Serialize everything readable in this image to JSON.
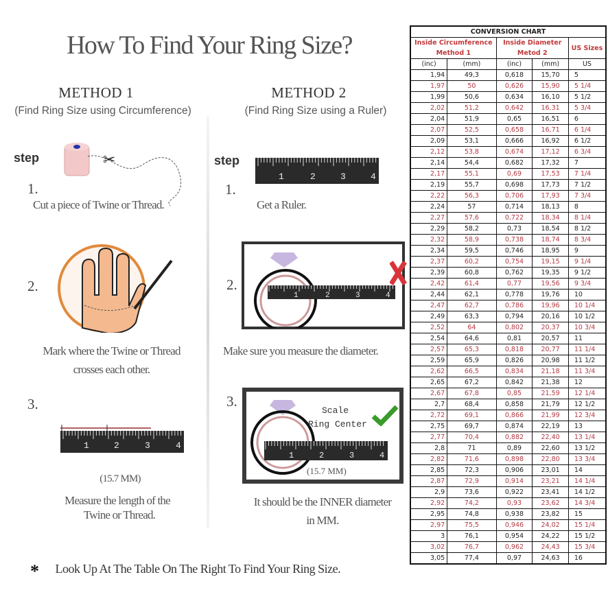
{
  "title": "How To Find Your Ring Size?",
  "method1": {
    "heading": "METHOD 1",
    "subtitle": "(Find Ring Size using Circumference)",
    "step_label": "step",
    "steps": [
      {
        "number": "1.",
        "caption": [
          "Cut a piece of  Twine or Thread."
        ]
      },
      {
        "number": "2.",
        "caption": [
          "Mark where the Twine or Thread",
          "crosses each other."
        ]
      },
      {
        "number": "3.",
        "measurement": "(15.7 MM)",
        "caption": [
          "Measure the length of the",
          "Twine or Thread."
        ]
      }
    ]
  },
  "method2": {
    "heading": "METHOD 2",
    "subtitle": "(Find Ring Size using a Ruler)",
    "step_label": "step",
    "steps": [
      {
        "number": "1.",
        "caption": [
          "Get a Ruler."
        ]
      },
      {
        "number": "2.",
        "caption": [
          "Make sure you measure the diameter."
        ]
      },
      {
        "number": "3.",
        "scale_label": [
          "Scale",
          "Ring Center"
        ],
        "measurement": "(15.7 MM)",
        "caption": [
          "It should be the INNER diameter",
          "in MM."
        ]
      }
    ]
  },
  "ruler_numbers": [
    "1",
    "2",
    "3",
    "4"
  ],
  "footnote": {
    "symbol": "*",
    "text": "Look Up At The Table On The Right To Find Your Ring Size."
  },
  "colors": {
    "highlight_red": "#b23a44",
    "header_red": "#c0393b",
    "hand_circle": "#e08a3c",
    "check_green": "#3a9a2a",
    "cross_red": "#d9343a"
  },
  "table": {
    "title": "CONVERSION CHART",
    "group_headers": [
      "Inside Circumference",
      "Method 1",
      "Inside Diameter",
      "Metod 2",
      "US Sizes"
    ],
    "unit_headers": [
      "(inc)",
      "(mm)",
      "(inc)",
      "(mm)",
      "US"
    ],
    "rows": [
      [
        "1,94",
        "49,3",
        "0,618",
        "15,70",
        "5"
      ],
      [
        "1,97",
        "50",
        "0,626",
        "15,90",
        "5 1/4"
      ],
      [
        "1,99",
        "50,6",
        "0,634",
        "16,10",
        "5 1/2"
      ],
      [
        "2,02",
        "51,2",
        "0,642",
        "16,31",
        "5 3/4"
      ],
      [
        "2,04",
        "51,9",
        "0,65",
        "16,51",
        "6"
      ],
      [
        "2,07",
        "52,5",
        "0,658",
        "16,71",
        "6 1/4"
      ],
      [
        "2,09",
        "53,1",
        "0,666",
        "16,92",
        "6 1/2"
      ],
      [
        "2,12",
        "53,8",
        "0,674",
        "17,12",
        "6 3/4"
      ],
      [
        "2,14",
        "54,4",
        "0,682",
        "17,32",
        "7"
      ],
      [
        "2,17",
        "55,1",
        "0,69",
        "17,53",
        "7 1/4"
      ],
      [
        "2,19",
        "55,7",
        "0,698",
        "17,73",
        "7 1/2"
      ],
      [
        "2,22",
        "56,3",
        "0,706",
        "17,93",
        "7 3/4"
      ],
      [
        "2,24",
        "57",
        "0,714",
        "18,13",
        "8"
      ],
      [
        "2,27",
        "57,6",
        "0,722",
        "18,34",
        "8 1/4"
      ],
      [
        "2,29",
        "58,2",
        "0,73",
        "18,54",
        "8 1/2"
      ],
      [
        "2,32",
        "58,9",
        "0,738",
        "18,74",
        "8 3/4"
      ],
      [
        "2,34",
        "59,5",
        "0,746",
        "18,95",
        "9"
      ],
      [
        "2,37",
        "60,2",
        "0,754",
        "19,15",
        "9 1/4"
      ],
      [
        "2,39",
        "60,8",
        "0,762",
        "19,35",
        "9 1/2"
      ],
      [
        "2,42",
        "61,4",
        "0,77",
        "19,56",
        "9 3/4"
      ],
      [
        "2,44",
        "62,1",
        "0,778",
        "19,76",
        "10"
      ],
      [
        "2,47",
        "62,7",
        "0,786",
        "19,96",
        "10 1/4"
      ],
      [
        "2,49",
        "63,3",
        "0,794",
        "20,16",
        "10 1/2"
      ],
      [
        "2,52",
        "64",
        "0,802",
        "20,37",
        "10 3/4"
      ],
      [
        "2,54",
        "64,6",
        "0,81",
        "20,57",
        "11"
      ],
      [
        "2,57",
        "65,3",
        "0,818",
        "20,77",
        "11 1/4"
      ],
      [
        "2,59",
        "65,9",
        "0,826",
        "20,98",
        "11 1/2"
      ],
      [
        "2,62",
        "66,5",
        "0,834",
        "21,18",
        "11 3/4"
      ],
      [
        "2,65",
        "67,2",
        "0,842",
        "21,38",
        "12"
      ],
      [
        "2,67",
        "67,8",
        "0,85",
        "21,59",
        "12 1/4"
      ],
      [
        "2,7",
        "68,4",
        "0,858",
        "21,79",
        "12 1/2"
      ],
      [
        "2,72",
        "69,1",
        "0,866",
        "21,99",
        "12 3/4"
      ],
      [
        "2,75",
        "69,7",
        "0,874",
        "22,19",
        "13"
      ],
      [
        "2,77",
        "70,4",
        "0,882",
        "22,40",
        "13 1/4"
      ],
      [
        "2,8",
        "71",
        "0,89",
        "22,60",
        "13 1/2"
      ],
      [
        "2,82",
        "71,6",
        "0,898",
        "22,80",
        "13 3/4"
      ],
      [
        "2,85",
        "72,3",
        "0,906",
        "23,01",
        "14"
      ],
      [
        "2,87",
        "72,9",
        "0,914",
        "23,21",
        "14 1/4"
      ],
      [
        "2,9",
        "73,6",
        "0,922",
        "23,41",
        "14 1/2"
      ],
      [
        "2,92",
        "74,2",
        "0,93",
        "23,62",
        "14 3/4"
      ],
      [
        "2,95",
        "74,8",
        "0,938",
        "23,82",
        "15"
      ],
      [
        "2,97",
        "75,5",
        "0,946",
        "24,02",
        "15 1/4"
      ],
      [
        "3",
        "76,1",
        "0,954",
        "24,22",
        "15 1/2"
      ],
      [
        "3,02",
        "76,7",
        "0,962",
        "24,43",
        "15 3/4"
      ],
      [
        "3,05",
        "77,4",
        "0,97",
        "24,63",
        "16"
      ]
    ]
  }
}
